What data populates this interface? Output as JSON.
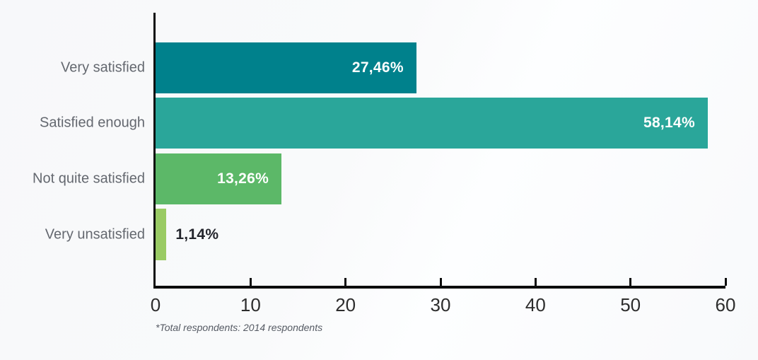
{
  "chart_data": {
    "type": "bar",
    "orientation": "horizontal",
    "title": "",
    "categories": [
      "Very satisfied",
      "Satisfied enough",
      "Not quite satisfied",
      "Very unsatisfied"
    ],
    "values": [
      27.46,
      58.14,
      13.26,
      1.14
    ],
    "value_labels": [
      "27,46%",
      "58,14%",
      "13,26%",
      "1,14%"
    ],
    "bar_colors": [
      "#00818C",
      "#2AA69A",
      "#5CB868",
      "#9ACB64"
    ],
    "xlim": [
      0,
      60
    ],
    "x_ticks": [
      "0",
      "10",
      "20",
      "30",
      "40",
      "50",
      "60"
    ],
    "grid": false,
    "legend": false,
    "axis_color": "#0c0c0c",
    "value_label_inside_color": "#ffffff",
    "value_label_outside_color": "#23252c",
    "category_label_color": "#64686f",
    "footnote": "*Total respondents: 2014 respondents"
  }
}
